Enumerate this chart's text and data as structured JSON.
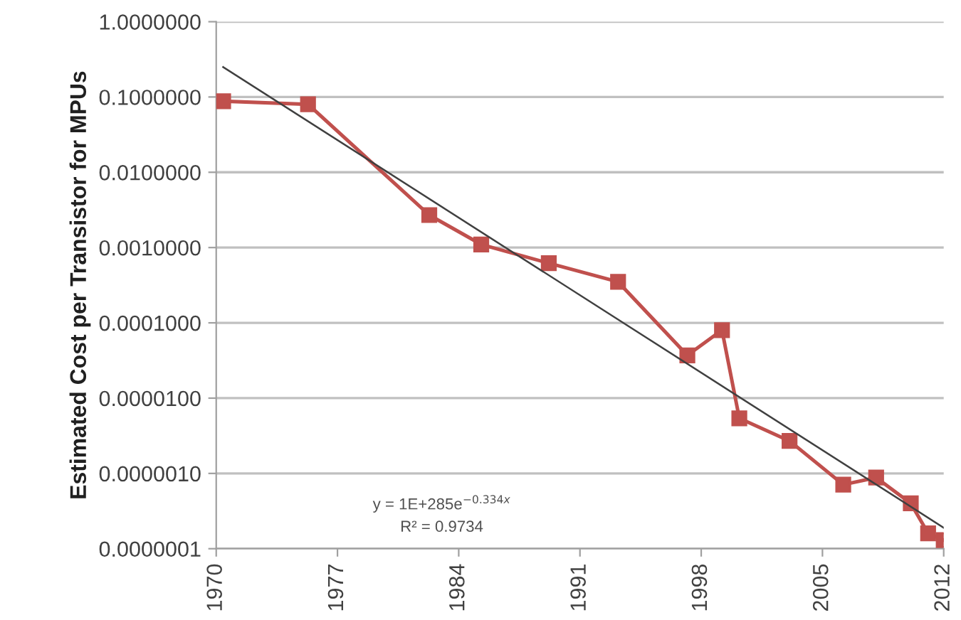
{
  "chart_data": {
    "type": "line",
    "ylabel": "Estimated Cost per Transistor for MPUs",
    "log": "y",
    "xlim": [
      1970,
      2012
    ],
    "xticks": [
      1970,
      1977,
      1984,
      1991,
      1998,
      2005,
      2012
    ],
    "ylim": [
      1e-07,
      1
    ],
    "yticks": [
      {
        "value": 1,
        "label": "1.0000000"
      },
      {
        "value": 0.1,
        "label": "0.1000000"
      },
      {
        "value": 0.01,
        "label": "0.0100000"
      },
      {
        "value": 0.001,
        "label": "0.0010000"
      },
      {
        "value": 0.0001,
        "label": "0.0001000"
      },
      {
        "value": 1e-05,
        "label": "0.0000100"
      },
      {
        "value": 1e-06,
        "label": "0.0000010"
      },
      {
        "value": 1e-07,
        "label": "0.0000001"
      }
    ],
    "grid": "y",
    "series": [
      {
        "color": "#c0504d",
        "marker": "square",
        "x": [
          1970.4,
          1975.3,
          1982.3,
          1985.3,
          1989.2,
          1993.2,
          1997.2,
          1999.2,
          2000.2,
          2003.1,
          2006.2,
          2008.1,
          2010.1,
          2011.1,
          2012.0
        ],
        "values": [
          0.088,
          0.08,
          0.0027,
          0.0011,
          0.00062,
          0.00035,
          3.7e-05,
          8e-05,
          5.4e-06,
          2.7e-06,
          7.1e-07,
          8.8e-07,
          4e-07,
          1.6e-07,
          1.3e-07
        ]
      },
      {
        "color": "#404040",
        "marker": "none",
        "x": [
          1970.4,
          2012.0
        ],
        "values": [
          0.25,
          1.9e-07
        ]
      }
    ],
    "annotations": [
      "y = 1E+285e$^{−0.334x}$",
      "R² = 0.9734"
    ]
  }
}
